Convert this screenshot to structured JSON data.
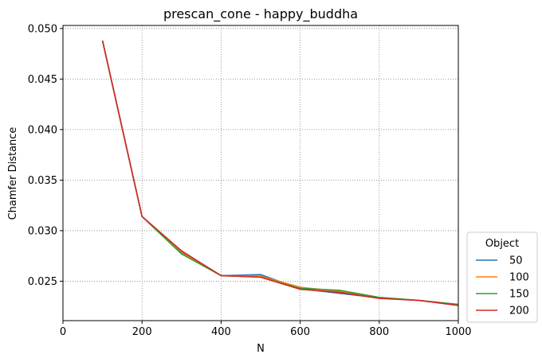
{
  "chart_data": {
    "type": "line",
    "title": "prescan_cone - happy_buddha",
    "xlabel": "N",
    "ylabel": "Chamfer Distance",
    "xlim": [
      0,
      1000
    ],
    "ylim": [
      0.0211,
      0.0503
    ],
    "xticks": [
      0,
      200,
      400,
      600,
      800,
      1000
    ],
    "xtick_labels": [
      "0",
      "200",
      "400",
      "600",
      "800",
      "1000"
    ],
    "yticks": [
      0.025,
      0.03,
      0.035,
      0.04,
      0.045,
      0.05
    ],
    "ytick_labels": [
      "0.025",
      "0.030",
      "0.035",
      "0.040",
      "0.045",
      "0.050"
    ],
    "grid": true,
    "legend": {
      "title": "Object",
      "placement": "lower-right-outside"
    },
    "x": [
      100,
      200,
      300,
      400,
      500,
      600,
      700,
      800,
      900,
      1000
    ],
    "series": [
      {
        "name": "50",
        "color": "#1f77b4",
        "values": [
          0.0488,
          0.0314,
          0.0279,
          0.02555,
          0.02565,
          0.02425,
          0.0238,
          0.02335,
          0.0231,
          0.0227
        ]
      },
      {
        "name": "100",
        "color": "#ff7f0e",
        "values": [
          0.0488,
          0.0314,
          0.0278,
          0.02555,
          0.0255,
          0.0244,
          0.024,
          0.0234,
          0.0231,
          0.0227
        ]
      },
      {
        "name": "150",
        "color": "#2ca02c",
        "values": [
          0.0488,
          0.0314,
          0.0277,
          0.02555,
          0.0254,
          0.0243,
          0.0241,
          0.0234,
          0.0231,
          0.0227
        ]
      },
      {
        "name": "200",
        "color": "#d62728",
        "values": [
          0.0488,
          0.0314,
          0.028,
          0.02555,
          0.0254,
          0.0242,
          0.0239,
          0.0233,
          0.0231,
          0.0226
        ]
      }
    ]
  }
}
